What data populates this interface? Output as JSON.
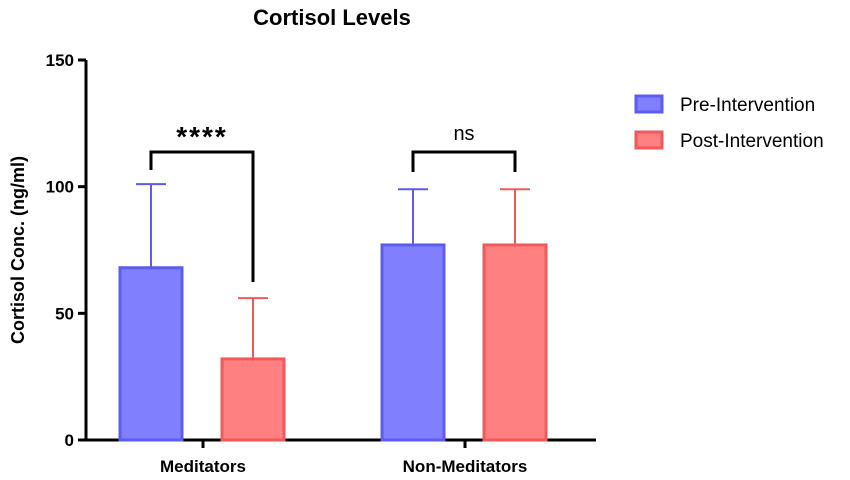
{
  "chart_data": {
    "type": "bar",
    "title": "Cortisol Levels",
    "xlabel": "",
    "ylabel": "Cortisol Conc. (ng/ml)",
    "ylim": [
      0,
      150
    ],
    "yticks": [
      0,
      50,
      100,
      150
    ],
    "categories": [
      "Meditators",
      "Non-Meditators"
    ],
    "series": [
      {
        "name": "Pre-Intervention",
        "values": [
          68,
          77
        ],
        "error_upper": [
          101,
          99
        ],
        "color": "#8080ff",
        "edge": "#5c5cf0"
      },
      {
        "name": "Post-Intervention",
        "values": [
          32,
          77
        ],
        "error_upper": [
          56,
          99
        ],
        "color": "#ff8080",
        "edge": "#f05a5a"
      }
    ],
    "annotations": [
      {
        "category": "Meditators",
        "label": "****"
      },
      {
        "category": "Non-Meditators",
        "label": "ns"
      }
    ],
    "legend": "top-right"
  }
}
